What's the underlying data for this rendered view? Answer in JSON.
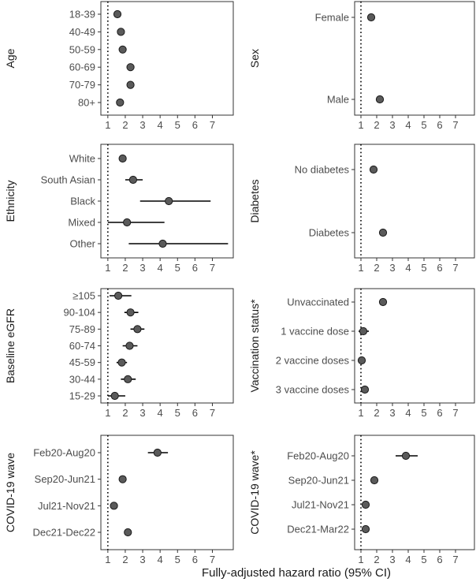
{
  "xlabel": "Fully-adjusted hazard ratio (95% CI)",
  "colors": {
    "point_fill": "#5a5a5a",
    "line": "#000000",
    "frame": "#333333"
  },
  "chart_data": [
    {
      "type": "forest",
      "title": "Age",
      "xlim": [
        0.6,
        8.2
      ],
      "x_ticks": [
        "1",
        "2",
        "3",
        "4",
        "5",
        "6",
        "7"
      ],
      "reference_line": 1,
      "categories": [
        "18-39",
        "40-49",
        "50-59",
        "60-69",
        "70-79",
        "80+"
      ],
      "estimates": [
        1.55,
        1.75,
        1.85,
        2.3,
        2.3,
        1.7
      ],
      "ci": [
        [
          1.35,
          1.75
        ],
        [
          1.6,
          1.9
        ],
        [
          1.7,
          2.0
        ],
        [
          2.15,
          2.45
        ],
        [
          2.15,
          2.45
        ],
        [
          1.55,
          1.85
        ]
      ]
    },
    {
      "type": "forest",
      "title": "Sex",
      "xlim": [
        0.6,
        8.2
      ],
      "x_ticks": [
        "1",
        "2",
        "3",
        "4",
        "5",
        "6",
        "7"
      ],
      "reference_line": 1,
      "categories": [
        "Female",
        "Male"
      ],
      "estimates": [
        1.65,
        2.2
      ],
      "ci": [
        [
          1.55,
          1.75
        ],
        [
          2.1,
          2.3
        ]
      ]
    },
    {
      "type": "forest",
      "title": "Ethnicity",
      "xlim": [
        0.6,
        8.2
      ],
      "x_ticks": [
        "1",
        "2",
        "3",
        "4",
        "5",
        "6",
        "7"
      ],
      "reference_line": 1,
      "categories": [
        "White",
        "South Asian",
        "Black",
        "Mixed",
        "Other"
      ],
      "estimates": [
        1.85,
        2.45,
        4.5,
        2.1,
        4.15
      ],
      "ci": [
        [
          1.75,
          1.95
        ],
        [
          2.0,
          3.0
        ],
        [
          2.85,
          6.9
        ],
        [
          1.0,
          4.25
        ],
        [
          2.2,
          7.9
        ]
      ]
    },
    {
      "type": "forest",
      "title": "Diabetes",
      "xlim": [
        0.6,
        8.2
      ],
      "x_ticks": [
        "1",
        "2",
        "3",
        "4",
        "5",
        "6",
        "7"
      ],
      "reference_line": 1,
      "categories": [
        "No diabetes",
        "Diabetes"
      ],
      "estimates": [
        1.8,
        2.4
      ],
      "ci": [
        [
          1.7,
          1.9
        ],
        [
          2.25,
          2.55
        ]
      ]
    },
    {
      "type": "forest",
      "title": "Baseline eGFR",
      "xlim": [
        0.6,
        8.2
      ],
      "x_ticks": [
        "1",
        "2",
        "3",
        "4",
        "5",
        "6",
        "7"
      ],
      "reference_line": 1,
      "categories": [
        "≥105",
        "90-104",
        "75-89",
        "60-74",
        "45-59",
        "30-44",
        "15-29"
      ],
      "estimates": [
        1.6,
        2.3,
        2.7,
        2.25,
        1.8,
        2.15,
        1.4
      ],
      "ci": [
        [
          1.1,
          2.35
        ],
        [
          1.95,
          2.75
        ],
        [
          2.3,
          3.1
        ],
        [
          1.85,
          2.7
        ],
        [
          1.5,
          2.1
        ],
        [
          1.75,
          2.6
        ],
        [
          1.0,
          2.0
        ]
      ]
    },
    {
      "type": "forest",
      "title": "Vaccination status*",
      "xlim": [
        0.6,
        8.2
      ],
      "x_ticks": [
        "1",
        "2",
        "3",
        "4",
        "5",
        "6",
        "7"
      ],
      "reference_line": 1,
      "categories": [
        "Unvaccinated",
        "1 vaccine dose",
        "2 vaccine doses",
        "3 vaccine doses"
      ],
      "estimates": [
        2.4,
        1.15,
        1.05,
        1.25
      ],
      "ci": [
        [
          2.3,
          2.5
        ],
        [
          0.85,
          1.5
        ],
        [
          0.95,
          1.15
        ],
        [
          1.1,
          1.4
        ]
      ]
    },
    {
      "type": "forest",
      "title": "COVID-19 wave",
      "xlim": [
        0.6,
        8.2
      ],
      "x_ticks": [
        "1",
        "2",
        "3",
        "4",
        "5",
        "6",
        "7"
      ],
      "reference_line": 1,
      "categories": [
        "Feb20-Aug20",
        "Sep20-Jun21",
        "Jul21-Nov21",
        "Dec21-Dec22"
      ],
      "estimates": [
        3.85,
        1.85,
        1.35,
        2.15
      ],
      "ci": [
        [
          3.3,
          4.45
        ],
        [
          1.75,
          1.95
        ],
        [
          1.2,
          1.5
        ],
        [
          2.0,
          2.3
        ]
      ]
    },
    {
      "type": "forest",
      "title": "COVID-19 wave*",
      "xlim": [
        0.6,
        8.2
      ],
      "x_ticks": [
        "1",
        "2",
        "3",
        "4",
        "5",
        "6",
        "7"
      ],
      "reference_line": 1,
      "categories": [
        "Feb20-Aug20",
        "Sep20-Jun21",
        "Jul21-Nov21",
        "Dec21-Mar22"
      ],
      "estimates": [
        3.85,
        1.85,
        1.3,
        1.3
      ],
      "ci": [
        [
          3.2,
          4.6
        ],
        [
          1.75,
          1.95
        ],
        [
          1.1,
          1.5
        ],
        [
          1.15,
          1.45
        ]
      ]
    }
  ]
}
